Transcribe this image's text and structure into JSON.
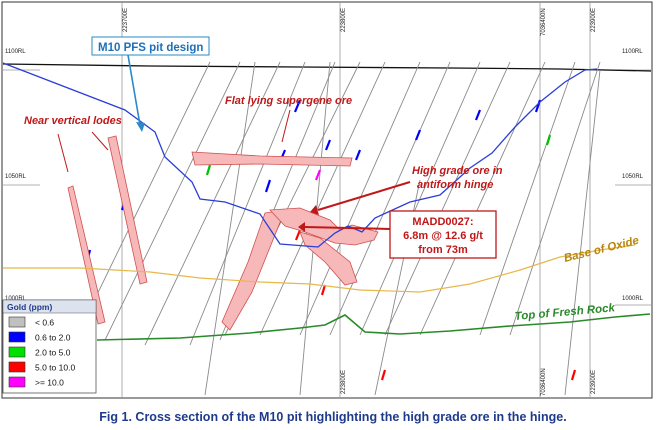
{
  "grid": {
    "top_labels": [
      "223700E",
      "223800E",
      "7036400N",
      "223900E"
    ],
    "bottom_labels": [
      "223800E",
      "7036400N",
      "223900E"
    ],
    "left_labels": [
      "1100RL",
      "1050RL",
      "1000RL"
    ],
    "right_labels": [
      "1100RL",
      "1050RL",
      "1000RL"
    ]
  },
  "annotations": {
    "pit_design": "M10 PFS pit design",
    "near_vertical": "Near vertical lodes",
    "supergene": "Flat lying supergene ore",
    "high_grade_line1": "High grade ore in",
    "high_grade_line2": "antiform hinge",
    "madd_line1": "MADD0027:",
    "madd_line2": "6.8m @ 12.6 g/t",
    "madd_line3": "from 73m",
    "base_oxide": "Base of Oxide",
    "fresh_rock": "Top of Fresh Rock"
  },
  "legend": {
    "title": "Gold (ppm)",
    "items": [
      {
        "label": "< 0.6",
        "color": "#c0c0c0"
      },
      {
        "label": "0.6 to 2.0",
        "color": "#0000ff"
      },
      {
        "label": "2.0 to 5.0",
        "color": "#00e000"
      },
      {
        "label": "5.0 to 10.0",
        "color": "#ff0000"
      },
      {
        "label": ">= 10.0",
        "color": "#ff00ff"
      }
    ]
  },
  "colors": {
    "pit": "#2a3fd8",
    "oxide": "#e8b84a",
    "fresh": "#2a8a2a",
    "ore_fill": "#f6b8b8",
    "ore_stroke": "#d05050",
    "label_red": "#c01818",
    "callout_blue": "#2a8ac8"
  },
  "caption": "Fig 1. Cross section of the M10 pit highlighting the high grade ore in the hinge."
}
